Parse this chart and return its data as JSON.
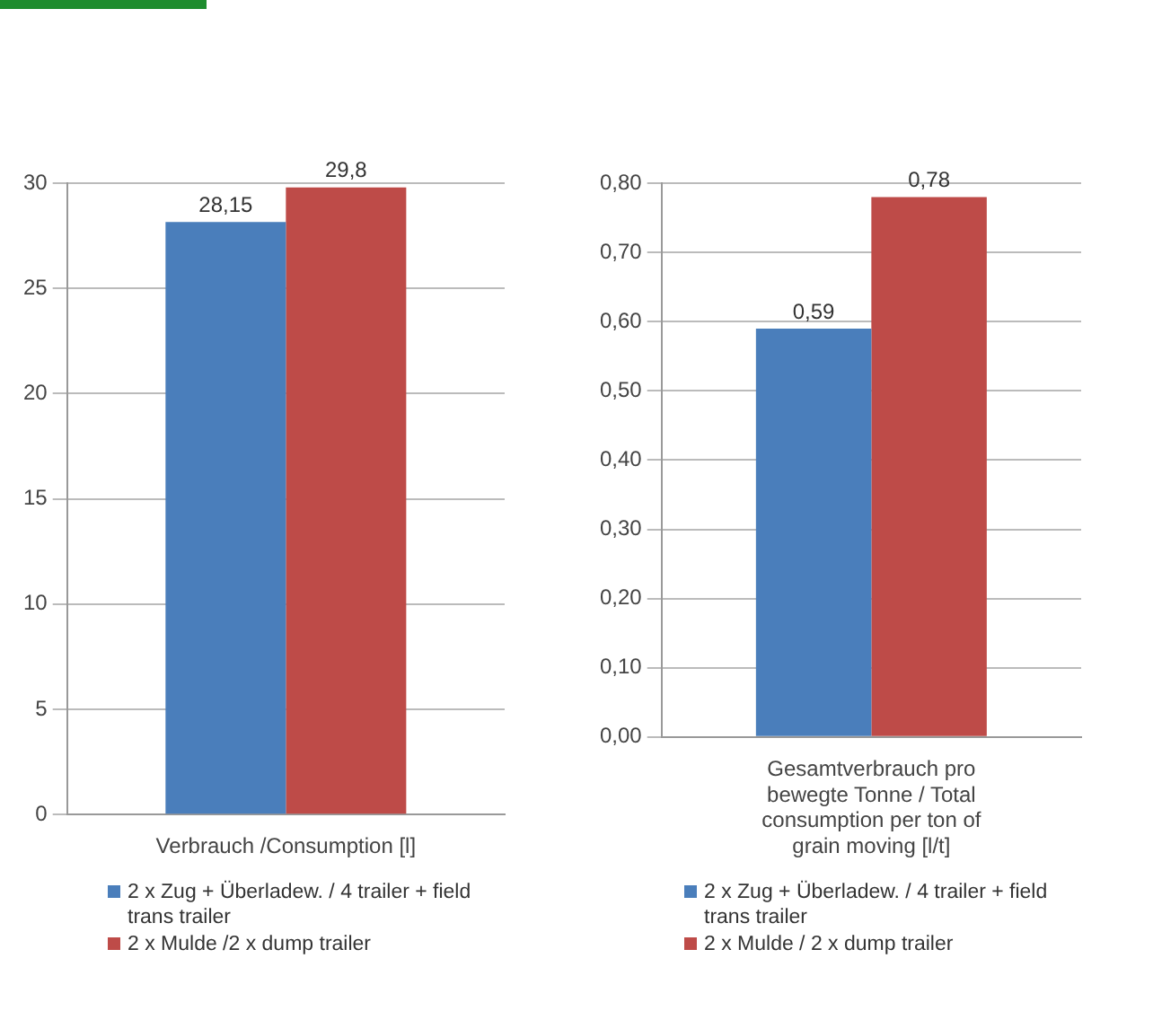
{
  "chart_data": [
    {
      "type": "bar",
      "categories": [
        "Verbrauch /Consumption [l]"
      ],
      "ylim": [
        0,
        30
      ],
      "yticks": [
        0,
        5,
        10,
        15,
        20,
        25,
        30
      ],
      "grid": "y",
      "legend": "bottom",
      "series": [
        {
          "name": "2 x Zug + Überladew. / 4 trailer + field trans trailer",
          "color": "#4a7ebb",
          "values": [
            28.15
          ],
          "value_labels": [
            "28,15"
          ]
        },
        {
          "name": "2  x Mulde /2 x dump trailer",
          "color": "#be4b48",
          "values": [
            29.8
          ],
          "value_labels": [
            "29,8"
          ]
        }
      ]
    },
    {
      "type": "bar",
      "categories": [
        "Gesamtverbrauch pro bewegte Tonne / Total consumption per ton of grain moving [l/t]"
      ],
      "ylim": [
        0,
        0.8
      ],
      "yticks": [
        {
          "value": 0,
          "label": "0,00"
        },
        {
          "value": 0.1,
          "label": "0,10"
        },
        {
          "value": 0.2,
          "label": "0,20"
        },
        {
          "value": 0.3,
          "label": "0,30"
        },
        {
          "value": 0.4,
          "label": "0,40"
        },
        {
          "value": 0.5,
          "label": "0,50"
        },
        {
          "value": 0.6,
          "label": "0,60"
        },
        {
          "value": 0.7,
          "label": "0,70"
        },
        {
          "value": 0.8,
          "label": "0,80"
        }
      ],
      "grid": "y",
      "legend": "bottom",
      "series": [
        {
          "name": "2 x Zug + Überladew. / 4 trailer + field trans trailer",
          "color": "#4a7ebb",
          "values": [
            0.59
          ],
          "value_labels": [
            "0,59"
          ]
        },
        {
          "name": "2  x Mulde / 2 x dump trailer",
          "color": "#be4b48",
          "values": [
            0.78
          ],
          "value_labels": [
            "0,78"
          ]
        }
      ]
    }
  ]
}
